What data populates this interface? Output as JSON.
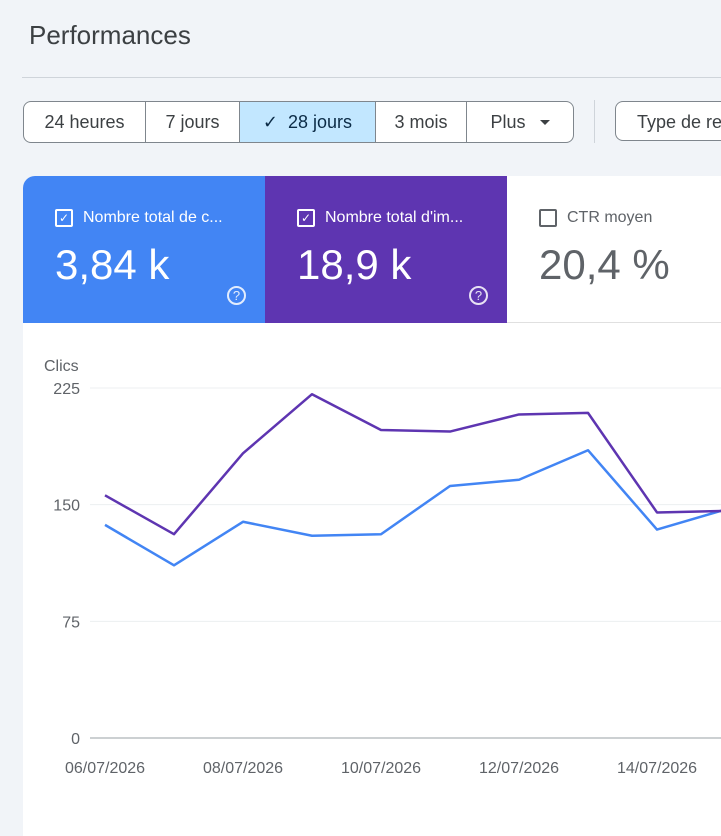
{
  "page": {
    "title": "Performances"
  },
  "date_range": {
    "options": [
      "24 heures",
      "7 jours",
      "28 jours",
      "3 mois",
      "Plus"
    ],
    "selected": "28 jours"
  },
  "filter": {
    "type_label": "Type de re"
  },
  "metrics": {
    "clicks": {
      "label": "Nombre total de c...",
      "value": "3,84 k",
      "checked": true,
      "color": "#4285f4"
    },
    "impressions": {
      "label": "Nombre total d'im...",
      "value": "18,9 k",
      "checked": true,
      "color": "#5e35b1"
    },
    "ctr": {
      "label": "CTR moyen",
      "value": "20,4 %",
      "checked": false
    }
  },
  "chart_data": {
    "type": "line",
    "ylabel": "Clics",
    "yticks": [
      0,
      75,
      150,
      225
    ],
    "ylim": [
      0,
      225
    ],
    "x_tick_labels": [
      "06/07/2026",
      "08/07/2026",
      "10/07/2026",
      "12/07/2026",
      "14/07/2026"
    ],
    "x": [
      "06/07/2026",
      "07/07/2026",
      "08/07/2026",
      "09/07/2026",
      "10/07/2026",
      "11/07/2026",
      "12/07/2026",
      "13/07/2026",
      "14/07/2026",
      "15/07/2026"
    ],
    "series": [
      {
        "color": "#4285f4",
        "values": [
          137,
          111,
          139,
          130,
          131,
          162,
          166,
          185,
          134,
          147
        ]
      },
      {
        "color": "#5e35b1",
        "values": [
          156,
          131,
          183,
          221,
          198,
          197,
          208,
          209,
          145,
          146
        ]
      }
    ],
    "grid": true
  }
}
